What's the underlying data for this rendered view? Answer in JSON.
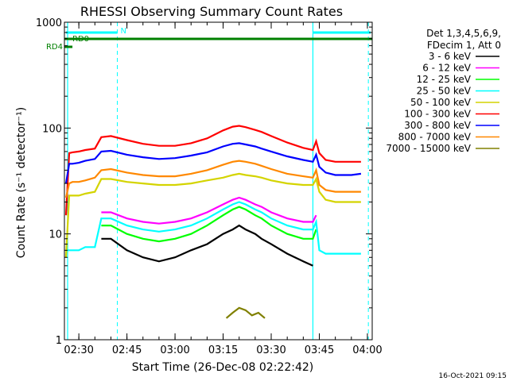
{
  "chart_data": {
    "type": "line",
    "title": "RHESSI Observing Summary Count Rates",
    "xlabel": "Start Time (26-Dec-08 02:22:42)",
    "ylabel": "Count Rate (s⁻¹ detector⁻¹)",
    "y_scale": "log",
    "ylim": [
      1,
      1000
    ],
    "xlim_minutes_after_0200": [
      25.5,
      121.5
    ],
    "x_ticks": [
      {
        "label": "02:30",
        "value": 30
      },
      {
        "label": "02:45",
        "value": 45
      },
      {
        "label": "03:00",
        "value": 60
      },
      {
        "label": "03:15",
        "value": 75
      },
      {
        "label": "03:30",
        "value": 90
      },
      {
        "label": "03:45",
        "value": 105
      },
      {
        "label": "04:00",
        "value": 120
      }
    ],
    "y_ticks": [
      {
        "label": "1",
        "value": 1
      },
      {
        "label": "10",
        "value": 10
      },
      {
        "label": "100",
        "value": 100
      },
      {
        "label": "1000",
        "value": 1000
      }
    ],
    "legend_header": [
      "Det 1,3,4,5,6,9,",
      "FDecim 1, Att 0"
    ],
    "legend_position": "right",
    "series": [
      {
        "name": "3 - 6 keV",
        "color": "#000000",
        "x": [
          26,
          27,
          28,
          30,
          32,
          35,
          37,
          40,
          45,
          50,
          55,
          60,
          65,
          70,
          75,
          78,
          80,
          82,
          85,
          87,
          90,
          95,
          100,
          103,
          104,
          105
        ],
        "y": [
          null,
          null,
          null,
          null,
          null,
          null,
          9,
          9,
          7,
          6,
          5.5,
          6,
          7,
          8,
          10,
          11,
          12,
          11,
          10,
          9,
          8,
          6.5,
          5.5,
          5,
          null,
          null
        ]
      },
      {
        "name": "6 - 12 keV",
        "color": "#ff00ff",
        "x": [
          26,
          27,
          28,
          30,
          32,
          35,
          37,
          40,
          45,
          50,
          55,
          60,
          65,
          70,
          75,
          78,
          80,
          82,
          85,
          87,
          90,
          95,
          100,
          103,
          104,
          105
        ],
        "y": [
          null,
          null,
          null,
          null,
          null,
          null,
          16,
          16,
          14,
          13,
          12.5,
          13,
          14,
          16,
          19,
          21,
          22,
          21,
          19,
          18,
          16,
          14,
          13,
          13,
          15,
          null
        ]
      },
      {
        "name": "12 - 25 keV",
        "color": "#00ff00",
        "x": [
          26,
          27,
          28,
          30,
          32,
          35,
          37,
          40,
          45,
          50,
          55,
          60,
          65,
          70,
          75,
          78,
          80,
          82,
          85,
          87,
          90,
          95,
          100,
          103,
          104,
          105
        ],
        "y": [
          null,
          null,
          null,
          null,
          null,
          null,
          12,
          12,
          10,
          9,
          8.5,
          9,
          10,
          12,
          15,
          17,
          18,
          17,
          15,
          14,
          12,
          10,
          9,
          9,
          11,
          null
        ]
      },
      {
        "name": "25 - 50 keV",
        "color": "#00ffff",
        "x": [
          26,
          27,
          28,
          30,
          32,
          35,
          37,
          40,
          45,
          50,
          55,
          60,
          65,
          70,
          75,
          78,
          80,
          82,
          85,
          87,
          90,
          95,
          100,
          103,
          104,
          105,
          107,
          110,
          115,
          118
        ],
        "y": [
          7,
          7,
          7,
          7,
          7.5,
          7.5,
          14,
          14,
          12,
          11,
          10.5,
          11,
          12,
          14,
          17,
          19,
          20,
          19,
          17,
          16,
          14,
          12,
          11,
          11,
          13,
          7,
          6.5,
          6.5,
          6.5,
          6.5
        ]
      },
      {
        "name": "50 - 100 keV",
        "color": "#d4d400",
        "x": [
          26,
          27,
          28,
          30,
          32,
          35,
          37,
          40,
          45,
          50,
          55,
          60,
          65,
          70,
          75,
          78,
          80,
          82,
          85,
          87,
          90,
          95,
          100,
          103,
          104,
          105,
          107,
          110,
          115,
          118
        ],
        "y": [
          6,
          23,
          23,
          23,
          24,
          25,
          33,
          33,
          31,
          30,
          29,
          29,
          30,
          32,
          34,
          36,
          37,
          36,
          35,
          34,
          32,
          30,
          29,
          29,
          33,
          25,
          21,
          20,
          20,
          20
        ]
      },
      {
        "name": "100 - 300 keV",
        "color": "#ff0000",
        "x": [
          26,
          27,
          28,
          30,
          32,
          35,
          37,
          40,
          45,
          50,
          55,
          60,
          65,
          70,
          75,
          78,
          80,
          82,
          85,
          87,
          90,
          95,
          100,
          103,
          104,
          105,
          107,
          110,
          115,
          118
        ],
        "y": [
          15,
          58,
          59,
          60,
          62,
          64,
          82,
          84,
          77,
          71,
          68,
          68,
          72,
          80,
          95,
          103,
          105,
          102,
          96,
          92,
          84,
          73,
          65,
          62,
          75,
          58,
          50,
          48,
          48,
          48
        ]
      },
      {
        "name": "300 - 800 keV",
        "color": "#0000ff",
        "x": [
          26,
          27,
          28,
          30,
          32,
          35,
          37,
          40,
          45,
          50,
          55,
          60,
          65,
          70,
          75,
          78,
          80,
          82,
          85,
          87,
          90,
          95,
          100,
          103,
          104,
          105,
          107,
          110,
          115,
          118
        ],
        "y": [
          30,
          46,
          46,
          47,
          49,
          51,
          60,
          61,
          56,
          53,
          51,
          52,
          55,
          59,
          67,
          71,
          72,
          70,
          67,
          64,
          60,
          54,
          50,
          48,
          56,
          43,
          38,
          36,
          36,
          37
        ]
      },
      {
        "name": "800 - 7000 keV",
        "color": "#ff8800",
        "x": [
          26,
          27,
          28,
          30,
          32,
          35,
          37,
          40,
          45,
          50,
          55,
          60,
          65,
          70,
          75,
          78,
          80,
          82,
          85,
          87,
          90,
          95,
          100,
          103,
          104,
          105,
          107,
          110,
          115,
          118
        ],
        "y": [
          22,
          30,
          31,
          31,
          32,
          34,
          40,
          41,
          38,
          36,
          35,
          35,
          37,
          40,
          45,
          48,
          49,
          48,
          46,
          44,
          41,
          37,
          35,
          34,
          40,
          29,
          26,
          25,
          25,
          25
        ]
      },
      {
        "name": "7000 - 15000 keV",
        "color": "#808000",
        "x": [
          76,
          78,
          80,
          82,
          84,
          86,
          88
        ],
        "y": [
          1.6,
          1.8,
          2.0,
          1.9,
          1.7,
          1.8,
          1.6
        ]
      }
    ],
    "annotations": [
      {
        "label": "N",
        "color": "#00ffff"
      },
      {
        "label": "RD0",
        "color": "#008000"
      },
      {
        "label": "RD4",
        "color": "#008000"
      }
    ],
    "footer_date": "16-Oct-2021 09:15"
  }
}
